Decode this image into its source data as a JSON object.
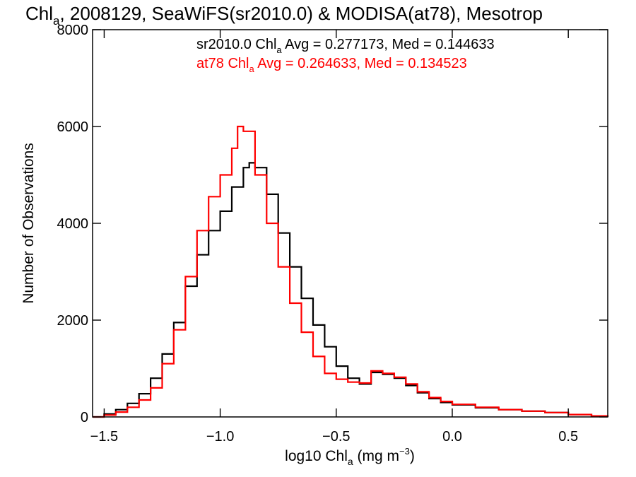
{
  "chart_data": {
    "type": "line",
    "step": true,
    "title": {
      "base": "Chl",
      "sub": "a",
      "rest": ", 2008129, SeaWiFS(sr2010.0) & MODISA(at78), Mesotrop"
    },
    "xlabel": {
      "base": "log10 Chl",
      "sub": "a",
      "rest": " (mg m",
      "sup": "−3",
      "close": ")"
    },
    "ylabel": "Number of Observations",
    "xlim": [
      -1.55,
      0.67
    ],
    "ylim": [
      0,
      8000
    ],
    "xticks": [
      -1.5,
      -1.0,
      -0.5,
      0.0,
      0.5
    ],
    "xtick_labels": [
      "−1.5",
      "−1.0",
      "−0.5",
      "0.0",
      "0.5"
    ],
    "yticks": [
      0,
      2000,
      4000,
      6000,
      8000
    ],
    "ytick_labels": [
      "0",
      "2000",
      "4000",
      "6000",
      "8000"
    ],
    "annotations": [
      {
        "text": "sr2010.0 Chl",
        "sub": "a",
        "rest": " Avg = 0.277173, Med = 0.144633",
        "color": "#000000"
      },
      {
        "text": "at78 Chl",
        "sub": "a",
        "rest": " Avg = 0.264633, Med = 0.134523",
        "color": "#ff0000"
      }
    ],
    "series": [
      {
        "name": "sr2010.0",
        "color": "#000000",
        "x": [
          -1.55,
          -1.5,
          -1.45,
          -1.4,
          -1.35,
          -1.3,
          -1.25,
          -1.2,
          -1.15,
          -1.1,
          -1.05,
          -1.0,
          -0.95,
          -0.9,
          -0.875,
          -0.85,
          -0.8,
          -0.75,
          -0.7,
          -0.65,
          -0.6,
          -0.55,
          -0.5,
          -0.45,
          -0.4,
          -0.35,
          -0.3,
          -0.25,
          -0.2,
          -0.15,
          -0.1,
          -0.05,
          0.0,
          0.1,
          0.2,
          0.3,
          0.4,
          0.5,
          0.6,
          0.67
        ],
        "y": [
          0,
          60,
          150,
          280,
          480,
          800,
          1300,
          1950,
          2700,
          3350,
          3850,
          4250,
          4750,
          5150,
          5250,
          5150,
          4600,
          3800,
          3100,
          2450,
          1900,
          1450,
          1050,
          800,
          680,
          920,
          880,
          800,
          650,
          500,
          380,
          300,
          250,
          190,
          150,
          120,
          90,
          50,
          20,
          0
        ]
      },
      {
        "name": "at78",
        "color": "#ff0000",
        "x": [
          -1.55,
          -1.5,
          -1.45,
          -1.4,
          -1.35,
          -1.3,
          -1.25,
          -1.2,
          -1.15,
          -1.1,
          -1.05,
          -1.0,
          -0.95,
          -0.925,
          -0.9,
          -0.85,
          -0.8,
          -0.75,
          -0.7,
          -0.65,
          -0.6,
          -0.55,
          -0.5,
          -0.45,
          -0.4,
          -0.35,
          -0.3,
          -0.25,
          -0.2,
          -0.15,
          -0.1,
          -0.05,
          0.0,
          0.1,
          0.2,
          0.3,
          0.4,
          0.5,
          0.6,
          0.67
        ],
        "y": [
          0,
          40,
          100,
          200,
          350,
          600,
          1100,
          1800,
          2900,
          3850,
          4550,
          5000,
          5550,
          6000,
          5900,
          5000,
          4000,
          3100,
          2350,
          1750,
          1250,
          900,
          780,
          720,
          700,
          950,
          900,
          820,
          680,
          520,
          400,
          320,
          260,
          200,
          150,
          120,
          90,
          50,
          20,
          0
        ]
      }
    ]
  }
}
